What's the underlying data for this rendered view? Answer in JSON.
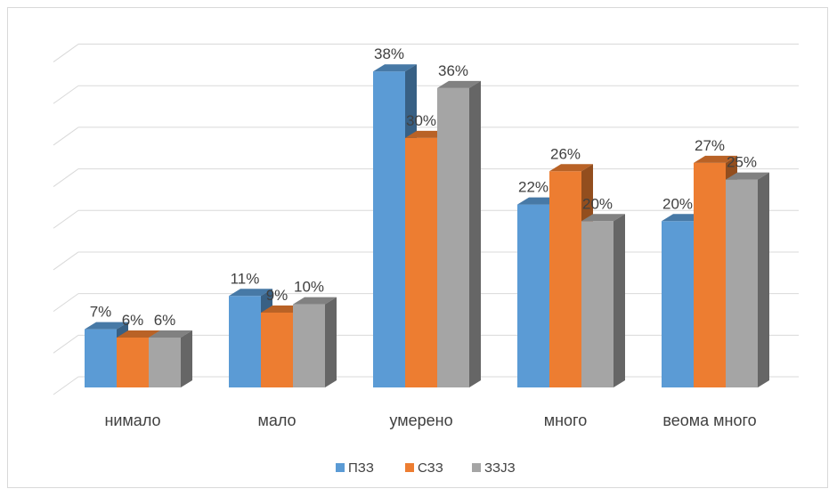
{
  "chart_data": {
    "type": "bar",
    "categories": [
      "нимало",
      "мало",
      "умерено",
      "много",
      "веома много"
    ],
    "series": [
      {
        "name": "ПЗЗ",
        "values": [
          7,
          11,
          38,
          22,
          20
        ],
        "color": "#5b9bd5"
      },
      {
        "name": "СЗЗ",
        "values": [
          6,
          9,
          30,
          26,
          27
        ],
        "color": "#ed7d31"
      },
      {
        "name": "ЗЗЈЗ",
        "values": [
          6,
          10,
          36,
          20,
          25
        ],
        "color": "#a5a5a5"
      }
    ],
    "data_labels": [
      [
        "7%",
        "11%",
        "38%",
        "22%",
        "20%"
      ],
      [
        "6%",
        "9%",
        "30%",
        "26%",
        "27%"
      ],
      [
        "6%",
        "10%",
        "36%",
        "20%",
        "25%"
      ]
    ],
    "ylim": [
      0,
      40
    ],
    "grid": true,
    "legend_position": "bottom",
    "style_3d": true
  }
}
